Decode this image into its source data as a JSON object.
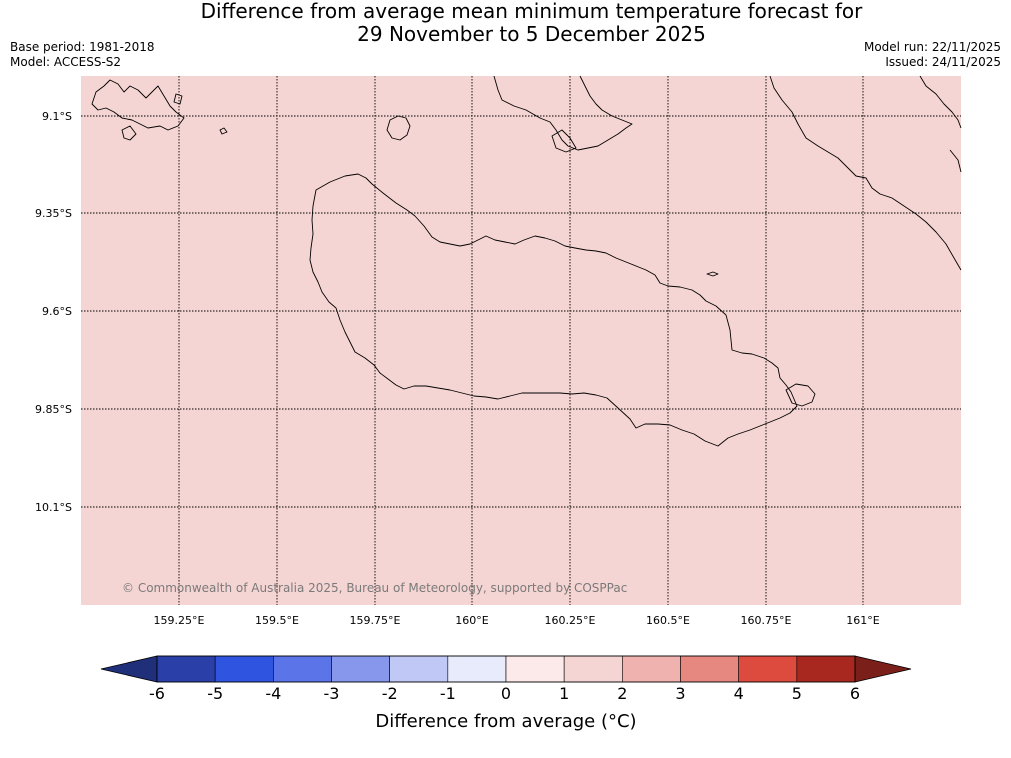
{
  "title": {
    "line1": "Difference from average mean minimum temperature forecast for",
    "line2": "29 November to 5 December 2025"
  },
  "meta": {
    "base_period": "Base period: 1981-2018",
    "model": "Model: ACCESS-S2",
    "model_run": "Model run: 22/11/2025",
    "issued": "Issued: 24/11/2025"
  },
  "map": {
    "fill_color": "#f5d5d3",
    "lat_labels": [
      "9.1°S",
      "9.35°S",
      "9.6°S",
      "9.85°S",
      "10.1°S"
    ],
    "lon_labels": [
      "159.25°E",
      "159.5°E",
      "159.75°E",
      "160°E",
      "160.25°E",
      "160.5°E",
      "160.75°E",
      "161°E"
    ],
    "copyright": "© Commonwealth of Australia 2025, Bureau of Meteorology, supported by COSPPac"
  },
  "colorbar": {
    "label": "Difference from average (°C)",
    "ticks": [
      "-6",
      "-5",
      "-4",
      "-3",
      "-2",
      "-1",
      "0",
      "1",
      "2",
      "3",
      "4",
      "5",
      "6"
    ],
    "low_extend_color": "#1f2f7a",
    "high_extend_color": "#7a1f1a",
    "colors": [
      "#2a3fa8",
      "#2f55e0",
      "#5b74e8",
      "#8697ec",
      "#c0c8f5",
      "#e8ebfb",
      "#fce9e9",
      "#f5d5d3",
      "#efb2ae",
      "#e68880",
      "#dd4a3e",
      "#a8281f"
    ]
  }
}
